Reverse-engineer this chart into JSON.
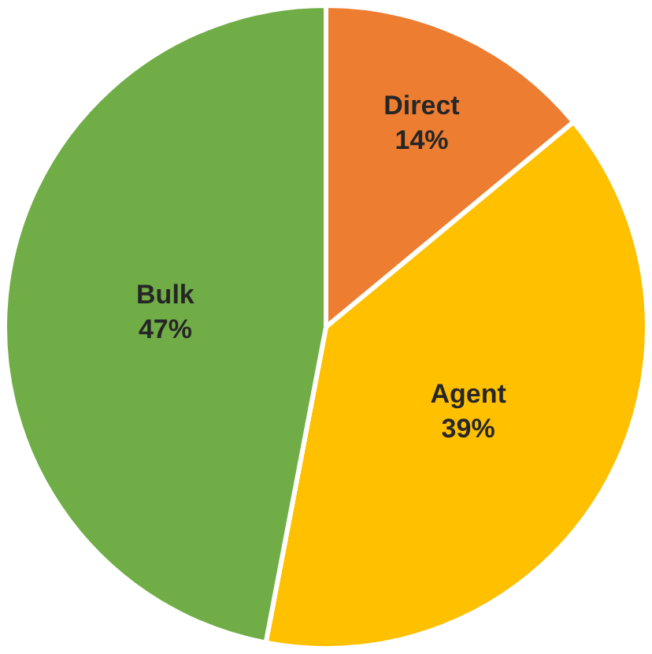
{
  "chart_data": {
    "type": "pie",
    "categories": [
      "Direct",
      "Agent",
      "Bulk"
    ],
    "values": [
      14,
      39,
      47
    ],
    "colors": [
      "#ed7d31",
      "#ffc000",
      "#70ad47"
    ],
    "value_labels": [
      "14%",
      "39%",
      "47%"
    ],
    "legend": false
  }
}
